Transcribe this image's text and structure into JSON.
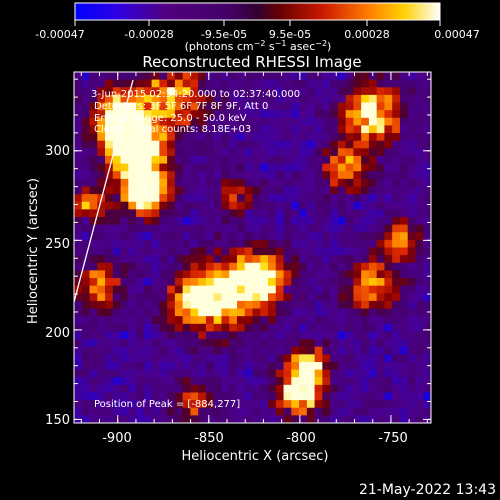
{
  "chart_data": {
    "type": "heatmap",
    "title": "Reconstructed RHESSI Image",
    "xlabel": "Heliocentric X (arcsec)",
    "ylabel": "Heliocentric Y (arcsec)",
    "xlim": [
      -924,
      -728
    ],
    "ylim": [
      148,
      344
    ],
    "x_ticks": [
      "-900",
      "-850",
      "-800",
      "-750"
    ],
    "y_ticks": [
      "150",
      "200",
      "250",
      "300"
    ],
    "colorbar": {
      "ticks": [
        "-0.00047",
        "-0.00028",
        "-9.5e-05",
        "9.5e-05",
        "0.00028",
        "0.00047"
      ],
      "range": [
        -0.00047,
        0.00047
      ]
    },
    "info_lines": [
      "3-Jun-2015 02:34:20.000 to 02:37:40.000",
      "Detectors: 3F 5F 6F 7F 8F 9F, Att 0",
      "Energy Range: 25.0 - 50.0 keV",
      "Clean    Total counts: 8.18E+03"
    ],
    "peak_label": "Position of Peak = [-884,277]",
    "peak": {
      "x": -884,
      "y": 277
    },
    "grid": false,
    "timestamp": "21-May-2022 13:43",
    "colors": {
      "background": "#000000",
      "foreground": "#ffffff"
    }
  }
}
